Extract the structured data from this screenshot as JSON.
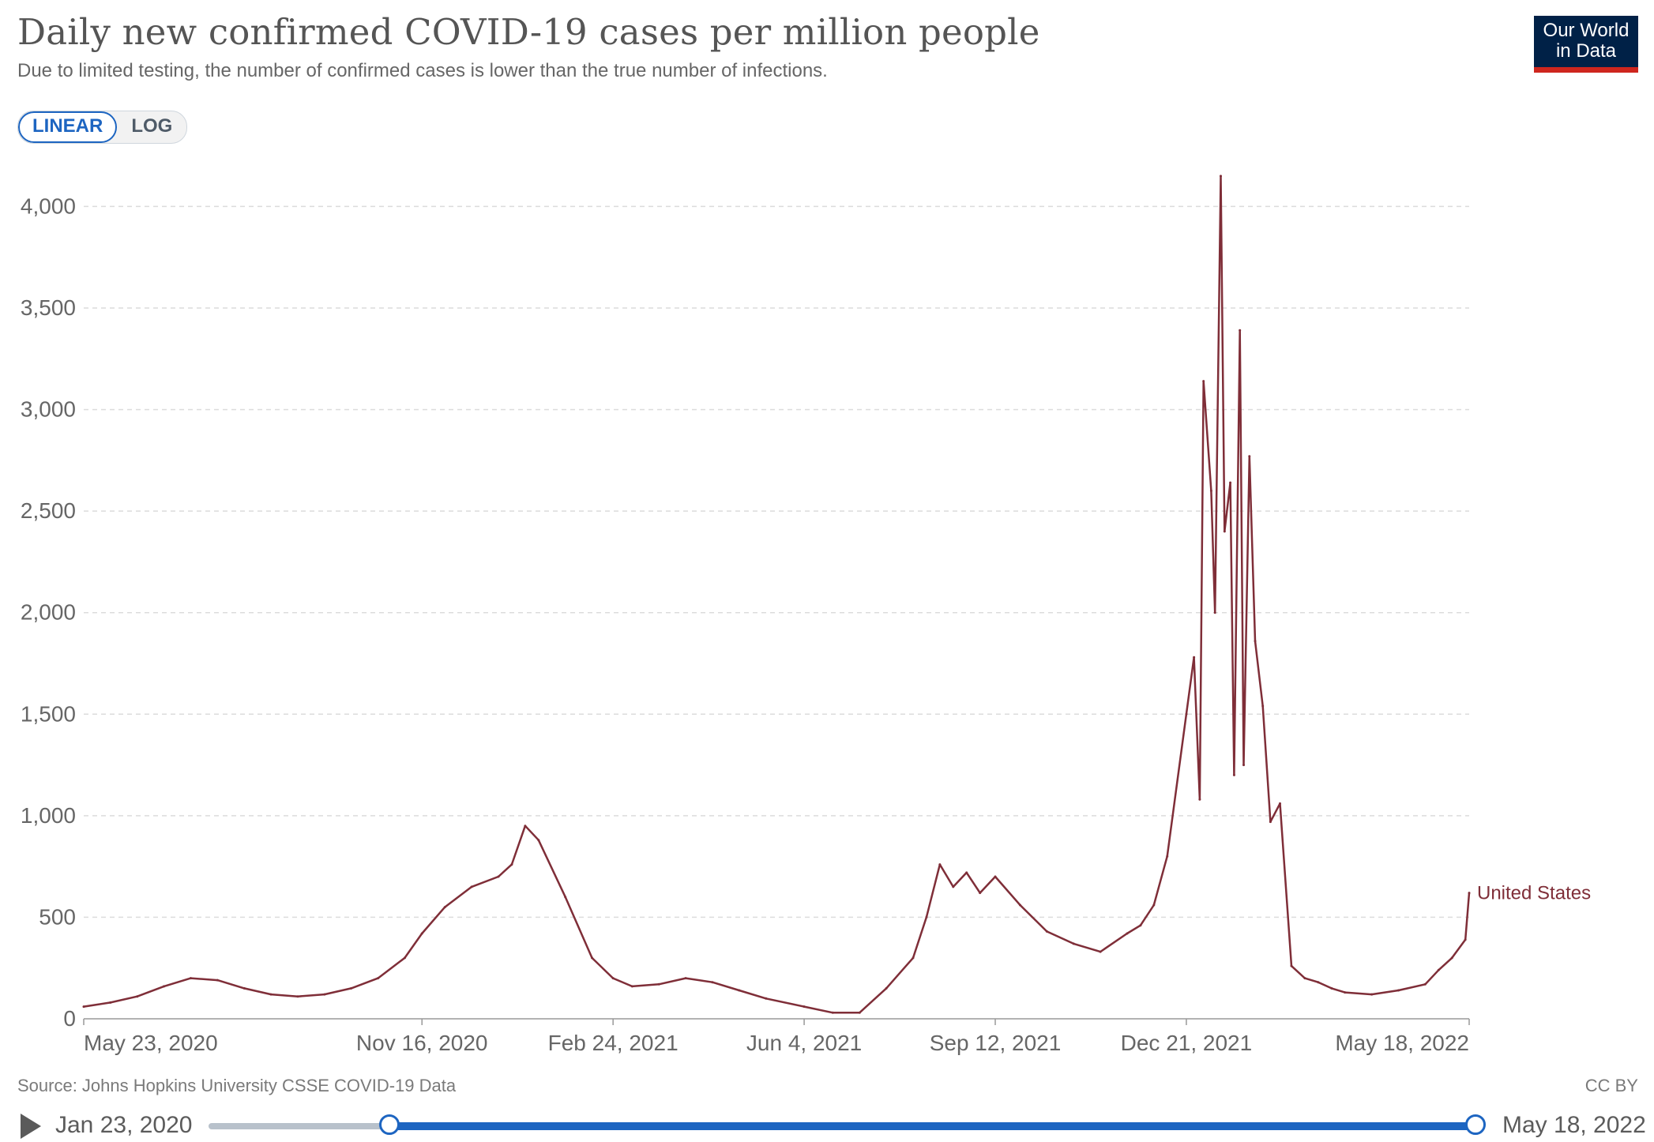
{
  "header": {
    "title": "Daily new confirmed COVID-19 cases per million people",
    "subtitle": "Due to limited testing, the number of confirmed cases is lower than the true number of infections."
  },
  "logo": {
    "line1": "Our World",
    "line2": "in Data"
  },
  "scale_toggle": {
    "linear_label": "LINEAR",
    "log_label": "LOG",
    "selected": "LINEAR"
  },
  "footer": {
    "source": "Source: Johns Hopkins University CSSE COVID-19 Data",
    "license": "CC BY"
  },
  "timeline": {
    "start_label": "Jan 23, 2020",
    "end_label": "May 18, 2022",
    "selection_start": "May 23, 2020",
    "selection_end": "May 18, 2022"
  },
  "colors": {
    "series": "#7f2e38",
    "accent": "#1d65c1",
    "logo_bg": "#002147",
    "logo_stripe": "#ce261e"
  },
  "chart_data": {
    "type": "line",
    "title": "Daily new confirmed COVID-19 cases per million people",
    "ylim": [
      0,
      4200
    ],
    "yticks": [
      0,
      500,
      1000,
      1500,
      2000,
      2500,
      3000,
      3500,
      4000
    ],
    "ytick_labels": [
      "0",
      "500",
      "1,000",
      "1,500",
      "2,000",
      "2,500",
      "3,000",
      "3,500",
      "4,000"
    ],
    "xlim": [
      "2020-05-23",
      "2022-05-18"
    ],
    "xticks": [
      "2020-05-23",
      "2020-11-16",
      "2021-02-24",
      "2021-06-04",
      "2021-09-12",
      "2021-12-21",
      "2022-05-18"
    ],
    "xtick_labels": [
      "May 23, 2020",
      "Nov 16, 2020",
      "Feb 24, 2021",
      "Jun 4, 2021",
      "Sep 12, 2021",
      "Dec 21, 2021",
      "May 18, 2022"
    ],
    "grid": "horizontal dashed",
    "series": [
      {
        "name": "United States",
        "color": "#7f2e38",
        "x": [
          "2020-05-23",
          "2020-06-06",
          "2020-06-20",
          "2020-07-04",
          "2020-07-18",
          "2020-08-01",
          "2020-08-15",
          "2020-08-29",
          "2020-09-12",
          "2020-09-26",
          "2020-10-10",
          "2020-10-24",
          "2020-11-07",
          "2020-11-16",
          "2020-11-28",
          "2020-12-12",
          "2020-12-26",
          "2021-01-02",
          "2021-01-09",
          "2021-01-16",
          "2021-01-30",
          "2021-02-13",
          "2021-02-24",
          "2021-03-06",
          "2021-03-20",
          "2021-04-03",
          "2021-04-17",
          "2021-05-01",
          "2021-05-15",
          "2021-06-04",
          "2021-06-19",
          "2021-07-03",
          "2021-07-17",
          "2021-07-31",
          "2021-08-07",
          "2021-08-14",
          "2021-08-21",
          "2021-08-28",
          "2021-09-04",
          "2021-09-12",
          "2021-09-25",
          "2021-10-09",
          "2021-10-23",
          "2021-11-06",
          "2021-11-20",
          "2021-11-27",
          "2021-12-04",
          "2021-12-11",
          "2021-12-21",
          "2021-12-25",
          "2021-12-28",
          "2021-12-30",
          "2022-01-03",
          "2022-01-05",
          "2022-01-08",
          "2022-01-10",
          "2022-01-13",
          "2022-01-15",
          "2022-01-18",
          "2022-01-20",
          "2022-01-23",
          "2022-01-26",
          "2022-01-30",
          "2022-02-03",
          "2022-02-08",
          "2022-02-14",
          "2022-02-21",
          "2022-02-28",
          "2022-03-07",
          "2022-03-14",
          "2022-03-28",
          "2022-04-11",
          "2022-04-25",
          "2022-05-02",
          "2022-05-09",
          "2022-05-16",
          "2022-05-18"
        ],
        "y": [
          60,
          80,
          110,
          160,
          200,
          190,
          150,
          120,
          110,
          120,
          150,
          200,
          300,
          420,
          550,
          650,
          700,
          760,
          950,
          880,
          600,
          300,
          200,
          160,
          170,
          200,
          180,
          140,
          100,
          60,
          30,
          30,
          150,
          300,
          500,
          760,
          650,
          720,
          620,
          700,
          560,
          430,
          370,
          330,
          420,
          460,
          560,
          800,
          1500,
          1780,
          1080,
          3140,
          2600,
          2000,
          4150,
          2400,
          2640,
          1200,
          3390,
          1250,
          2770,
          1860,
          1540,
          970,
          1060,
          260,
          200,
          180,
          150,
          130,
          120,
          140,
          170,
          240,
          300,
          390,
          620
        ]
      }
    ],
    "annotations": [
      {
        "text": "United States",
        "series": "United States"
      }
    ]
  }
}
